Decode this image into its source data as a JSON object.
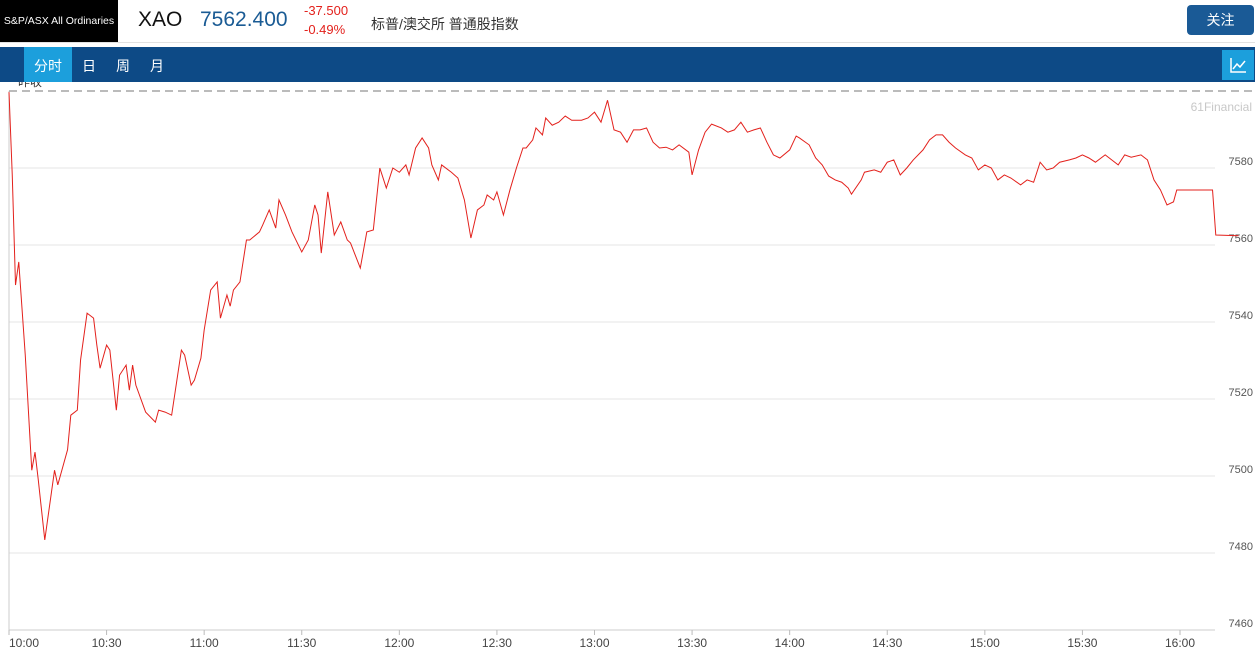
{
  "header": {
    "logo": "S&P/ASX All Ordinaries",
    "symbol": "XAO",
    "price": "7562.400",
    "change": "-37.500",
    "change_pct": "-0.49%",
    "name": "标普/澳交所 普通股指数",
    "follow": "关注"
  },
  "tabs": [
    "分时",
    "日",
    "周",
    "月"
  ],
  "chart_data": {
    "type": "line",
    "annotation": "昨收",
    "watermark": "61Financial",
    "color": "#e3211c",
    "grid": true,
    "xlim": [
      0,
      378
    ],
    "xticks": [
      {
        "value": 0,
        "label": "10:00"
      },
      {
        "value": 30,
        "label": "10:30"
      },
      {
        "value": 60,
        "label": "11:00"
      },
      {
        "value": 90,
        "label": "11:30"
      },
      {
        "value": 120,
        "label": "12:00"
      },
      {
        "value": 150,
        "label": "12:30"
      },
      {
        "value": 180,
        "label": "13:00"
      },
      {
        "value": 210,
        "label": "13:30"
      },
      {
        "value": 240,
        "label": "14:00"
      },
      {
        "value": 270,
        "label": "14:30"
      },
      {
        "value": 300,
        "label": "15:00"
      },
      {
        "value": 330,
        "label": "15:30"
      },
      {
        "value": 360,
        "label": "16:00"
      }
    ],
    "ylim": [
      7460,
      7600
    ],
    "yticks": [
      7460,
      7480,
      7500,
      7520,
      7540,
      7560,
      7580
    ],
    "x": [
      0,
      1,
      2,
      3,
      5,
      7,
      8,
      9,
      11,
      14,
      15,
      18,
      19,
      21,
      22,
      24,
      26,
      27,
      28,
      30,
      31,
      33,
      34,
      36,
      37,
      38,
      39,
      42,
      45,
      46,
      48,
      50,
      53,
      54,
      56,
      57,
      59,
      60,
      62,
      64,
      65,
      67,
      68,
      69,
      71,
      73,
      74,
      77,
      78,
      80,
      82,
      83,
      85,
      87,
      90,
      92,
      94,
      95,
      96,
      98,
      100,
      102,
      104,
      105,
      108,
      110,
      112,
      114,
      116,
      118,
      120,
      122,
      123,
      125,
      127,
      129,
      130,
      132,
      133,
      136,
      138,
      140,
      142,
      144,
      146,
      147,
      149,
      150,
      152,
      154,
      156,
      158,
      159,
      161,
      162,
      164,
      165,
      167,
      169,
      171,
      173,
      176,
      178,
      180,
      182,
      184,
      186,
      188,
      190,
      192,
      194,
      196,
      198,
      200,
      202,
      204,
      206,
      209,
      210,
      212,
      214,
      216,
      219,
      221,
      223,
      225,
      227,
      229,
      231,
      233,
      235,
      237,
      240,
      242,
      243,
      246,
      248,
      250,
      252,
      254,
      256,
      258,
      259,
      262,
      263,
      266,
      268,
      270,
      272,
      274,
      276,
      278,
      281,
      283,
      285,
      287,
      289,
      291,
      294,
      296,
      298,
      300,
      302,
      304,
      306,
      308,
      311,
      313,
      315,
      317,
      319,
      321,
      323,
      326,
      328,
      330,
      332,
      334,
      337,
      339,
      341,
      343,
      345,
      348,
      350,
      352,
      354,
      356,
      358,
      359,
      370,
      371,
      378
    ],
    "values": [
      7599.7,
      7578.2,
      7549.6,
      7555.6,
      7531.4,
      7501.5,
      7506.2,
      7499.0,
      7483.4,
      7501.5,
      7497.7,
      7506.8,
      7515.8,
      7517.1,
      7530.1,
      7542.3,
      7541.0,
      7534.0,
      7528.0,
      7534.0,
      7532.7,
      7517.1,
      7526.2,
      7528.8,
      7522.3,
      7528.8,
      7523.6,
      7516.6,
      7514.0,
      7517.1,
      7516.6,
      7515.8,
      7532.7,
      7531.4,
      7523.6,
      7524.9,
      7530.6,
      7537.9,
      7548.3,
      7550.4,
      7541.0,
      7547.0,
      7544.1,
      7548.3,
      7550.4,
      7561.3,
      7561.3,
      7563.4,
      7565.2,
      7569.1,
      7564.4,
      7571.7,
      7567.8,
      7563.4,
      7558.2,
      7561.3,
      7570.4,
      7567.8,
      7557.9,
      7573.8,
      7562.6,
      7566.0,
      7561.3,
      7560.5,
      7554.0,
      7563.4,
      7563.9,
      7580.0,
      7574.8,
      7580.0,
      7578.9,
      7580.8,
      7578.2,
      7585.2,
      7587.8,
      7585.2,
      7580.8,
      7576.9,
      7580.8,
      7578.9,
      7577.4,
      7571.7,
      7561.8,
      7569.1,
      7570.4,
      7573.0,
      7571.7,
      7573.8,
      7567.8,
      7574.3,
      7580.0,
      7585.2,
      7585.2,
      7587.3,
      7590.4,
      7588.6,
      7593.0,
      7591.1,
      7591.9,
      7593.5,
      7592.4,
      7592.4,
      7593.0,
      7594.5,
      7591.9,
      7597.6,
      7589.9,
      7589.3,
      7586.7,
      7589.9,
      7589.9,
      7590.4,
      7586.7,
      7585.2,
      7585.4,
      7584.7,
      7586.0,
      7584.1,
      7578.2,
      7584.7,
      7589.3,
      7591.4,
      7590.4,
      7589.3,
      7589.9,
      7591.9,
      7589.3,
      7589.9,
      7590.4,
      7586.7,
      7583.4,
      7582.6,
      7584.7,
      7588.3,
      7587.8,
      7586.0,
      7582.6,
      7580.8,
      7577.9,
      7576.9,
      7576.3,
      7574.8,
      7573.2,
      7576.9,
      7578.9,
      7579.5,
      7578.9,
      7581.5,
      7582.1,
      7578.2,
      7580.0,
      7582.1,
      7584.7,
      7587.3,
      7588.6,
      7588.6,
      7586.7,
      7585.2,
      7583.4,
      7582.6,
      7579.5,
      7580.8,
      7580.0,
      7576.9,
      7578.2,
      7577.4,
      7575.6,
      7576.9,
      7576.3,
      7581.5,
      7579.5,
      7580.0,
      7581.5,
      7582.1,
      7582.6,
      7583.4,
      7582.6,
      7581.5,
      7583.4,
      7582.1,
      7580.8,
      7583.4,
      7582.8,
      7583.4,
      7582.1,
      7576.9,
      7574.3,
      7570.4,
      7571.2,
      7574.3,
      7574.3,
      7562.6,
      7562.4
    ]
  }
}
